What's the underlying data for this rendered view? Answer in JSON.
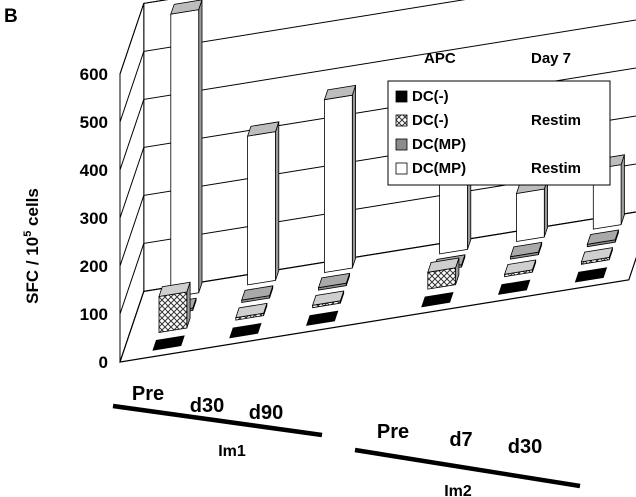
{
  "panel_label": "B",
  "chart_data": {
    "type": "bar",
    "ylabel": "SFC / 10",
    "ylabel_superscript": "5",
    "ylabel_suffix": " cells",
    "ylim": [
      0,
      600
    ],
    "yticks": [
      "0",
      "100",
      "200",
      "300",
      "400",
      "500",
      "600"
    ],
    "grid": true,
    "legend_placement": "top-right",
    "legend_header": {
      "col1": "APC",
      "col2": "Day 7"
    },
    "groups": [
      {
        "name": "Im1",
        "categories": [
          "Pre",
          "d30",
          "d90"
        ]
      },
      {
        "name": "Im2",
        "categories": [
          "Pre",
          "d7",
          "d30"
        ]
      }
    ],
    "series": [
      {
        "name": "DC(-)",
        "note": "",
        "style": "black",
        "values": [
          0,
          0,
          0,
          0,
          0,
          0
        ]
      },
      {
        "name": "DC(-)",
        "note": "Restim",
        "style": "checkered",
        "values": [
          75,
          5,
          5,
          35,
          5,
          5
        ]
      },
      {
        "name": "DC(MP)",
        "note": "",
        "style": "gray",
        "values": [
          5,
          5,
          5,
          5,
          5,
          5
        ]
      },
      {
        "name": "DC(MP)",
        "note": "Restim",
        "style": "white",
        "values": [
          590,
          310,
          360,
          220,
          100,
          125
        ]
      }
    ]
  }
}
